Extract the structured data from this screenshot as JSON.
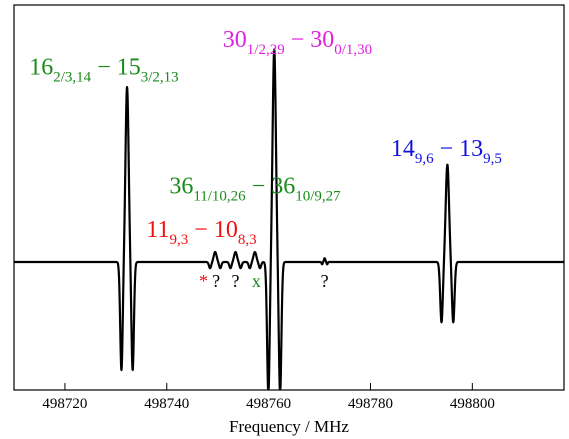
{
  "chart_data": {
    "type": "line",
    "title": "",
    "xlabel": "Frequency / MHz",
    "ylabel": "",
    "xlim": [
      498710,
      498818
    ],
    "ylim": [
      -1.1,
      1.65
    ],
    "xticks": [
      498720,
      498740,
      498760,
      498780,
      498800
    ],
    "grid": false,
    "colors": {
      "trace": "#000000",
      "green": "#1a8a1a",
      "magenta": "#e020e0",
      "blue": "#1010e0",
      "red": "#ee1111"
    },
    "lines": [
      {
        "center": 498732.2,
        "sep": 1.1,
        "amp": 1.4
      },
      {
        "center": 498761.1,
        "sep": 1.15,
        "amp": 1.7
      },
      {
        "center": 498795.1,
        "sep": 1.15,
        "amp": 0.78
      },
      {
        "center": 498749.5,
        "sep": 1.0,
        "amp": 0.08
      },
      {
        "center": 498753.5,
        "sep": 1.0,
        "amp": 0.08
      },
      {
        "center": 498757.3,
        "sep": 1.0,
        "amp": 0.08
      },
      {
        "center": 498771.0,
        "sep": 0.5,
        "amp": 0.03
      }
    ],
    "annotations": [
      {
        "main": "16",
        "sub": "2/3,14",
        "dash": "−",
        "main2": "15",
        "sub2": "3/2,13",
        "color": "green",
        "x": 498713,
        "y": 1.5
      },
      {
        "main": "30",
        "sub": "1/2,29",
        "dash": "−",
        "main2": "30",
        "sub2": "0/1,30",
        "color": "magenta",
        "x": 498751,
        "y": 1.72
      },
      {
        "main": "14",
        "sub": "9,6",
        "dash": "−",
        "main2": "13",
        "sub2": "9,5",
        "color": "blue",
        "x": 498784,
        "y": 0.85
      },
      {
        "main": "36",
        "sub": "11/10,26",
        "dash": "−",
        "main2": "36",
        "sub2": "10/9,27",
        "color": "green",
        "x": 498740.5,
        "y": 0.55
      },
      {
        "main": "11",
        "sub": "9,3",
        "dash": "−",
        "main2": "10",
        "sub2": "8,3",
        "color": "red",
        "x": 498736,
        "y": 0.2
      }
    ],
    "markers": [
      {
        "text": "*",
        "color": "red",
        "x": 498747.2,
        "y": -0.2
      },
      {
        "text": "?",
        "color": "black",
        "x": 498749.7,
        "y": -0.2
      },
      {
        "text": "?",
        "color": "black",
        "x": 498753.5,
        "y": -0.2
      },
      {
        "text": "x",
        "color": "green",
        "x": 498757.6,
        "y": -0.2
      },
      {
        "text": "?",
        "color": "black",
        "x": 498771.0,
        "y": -0.2
      }
    ]
  }
}
